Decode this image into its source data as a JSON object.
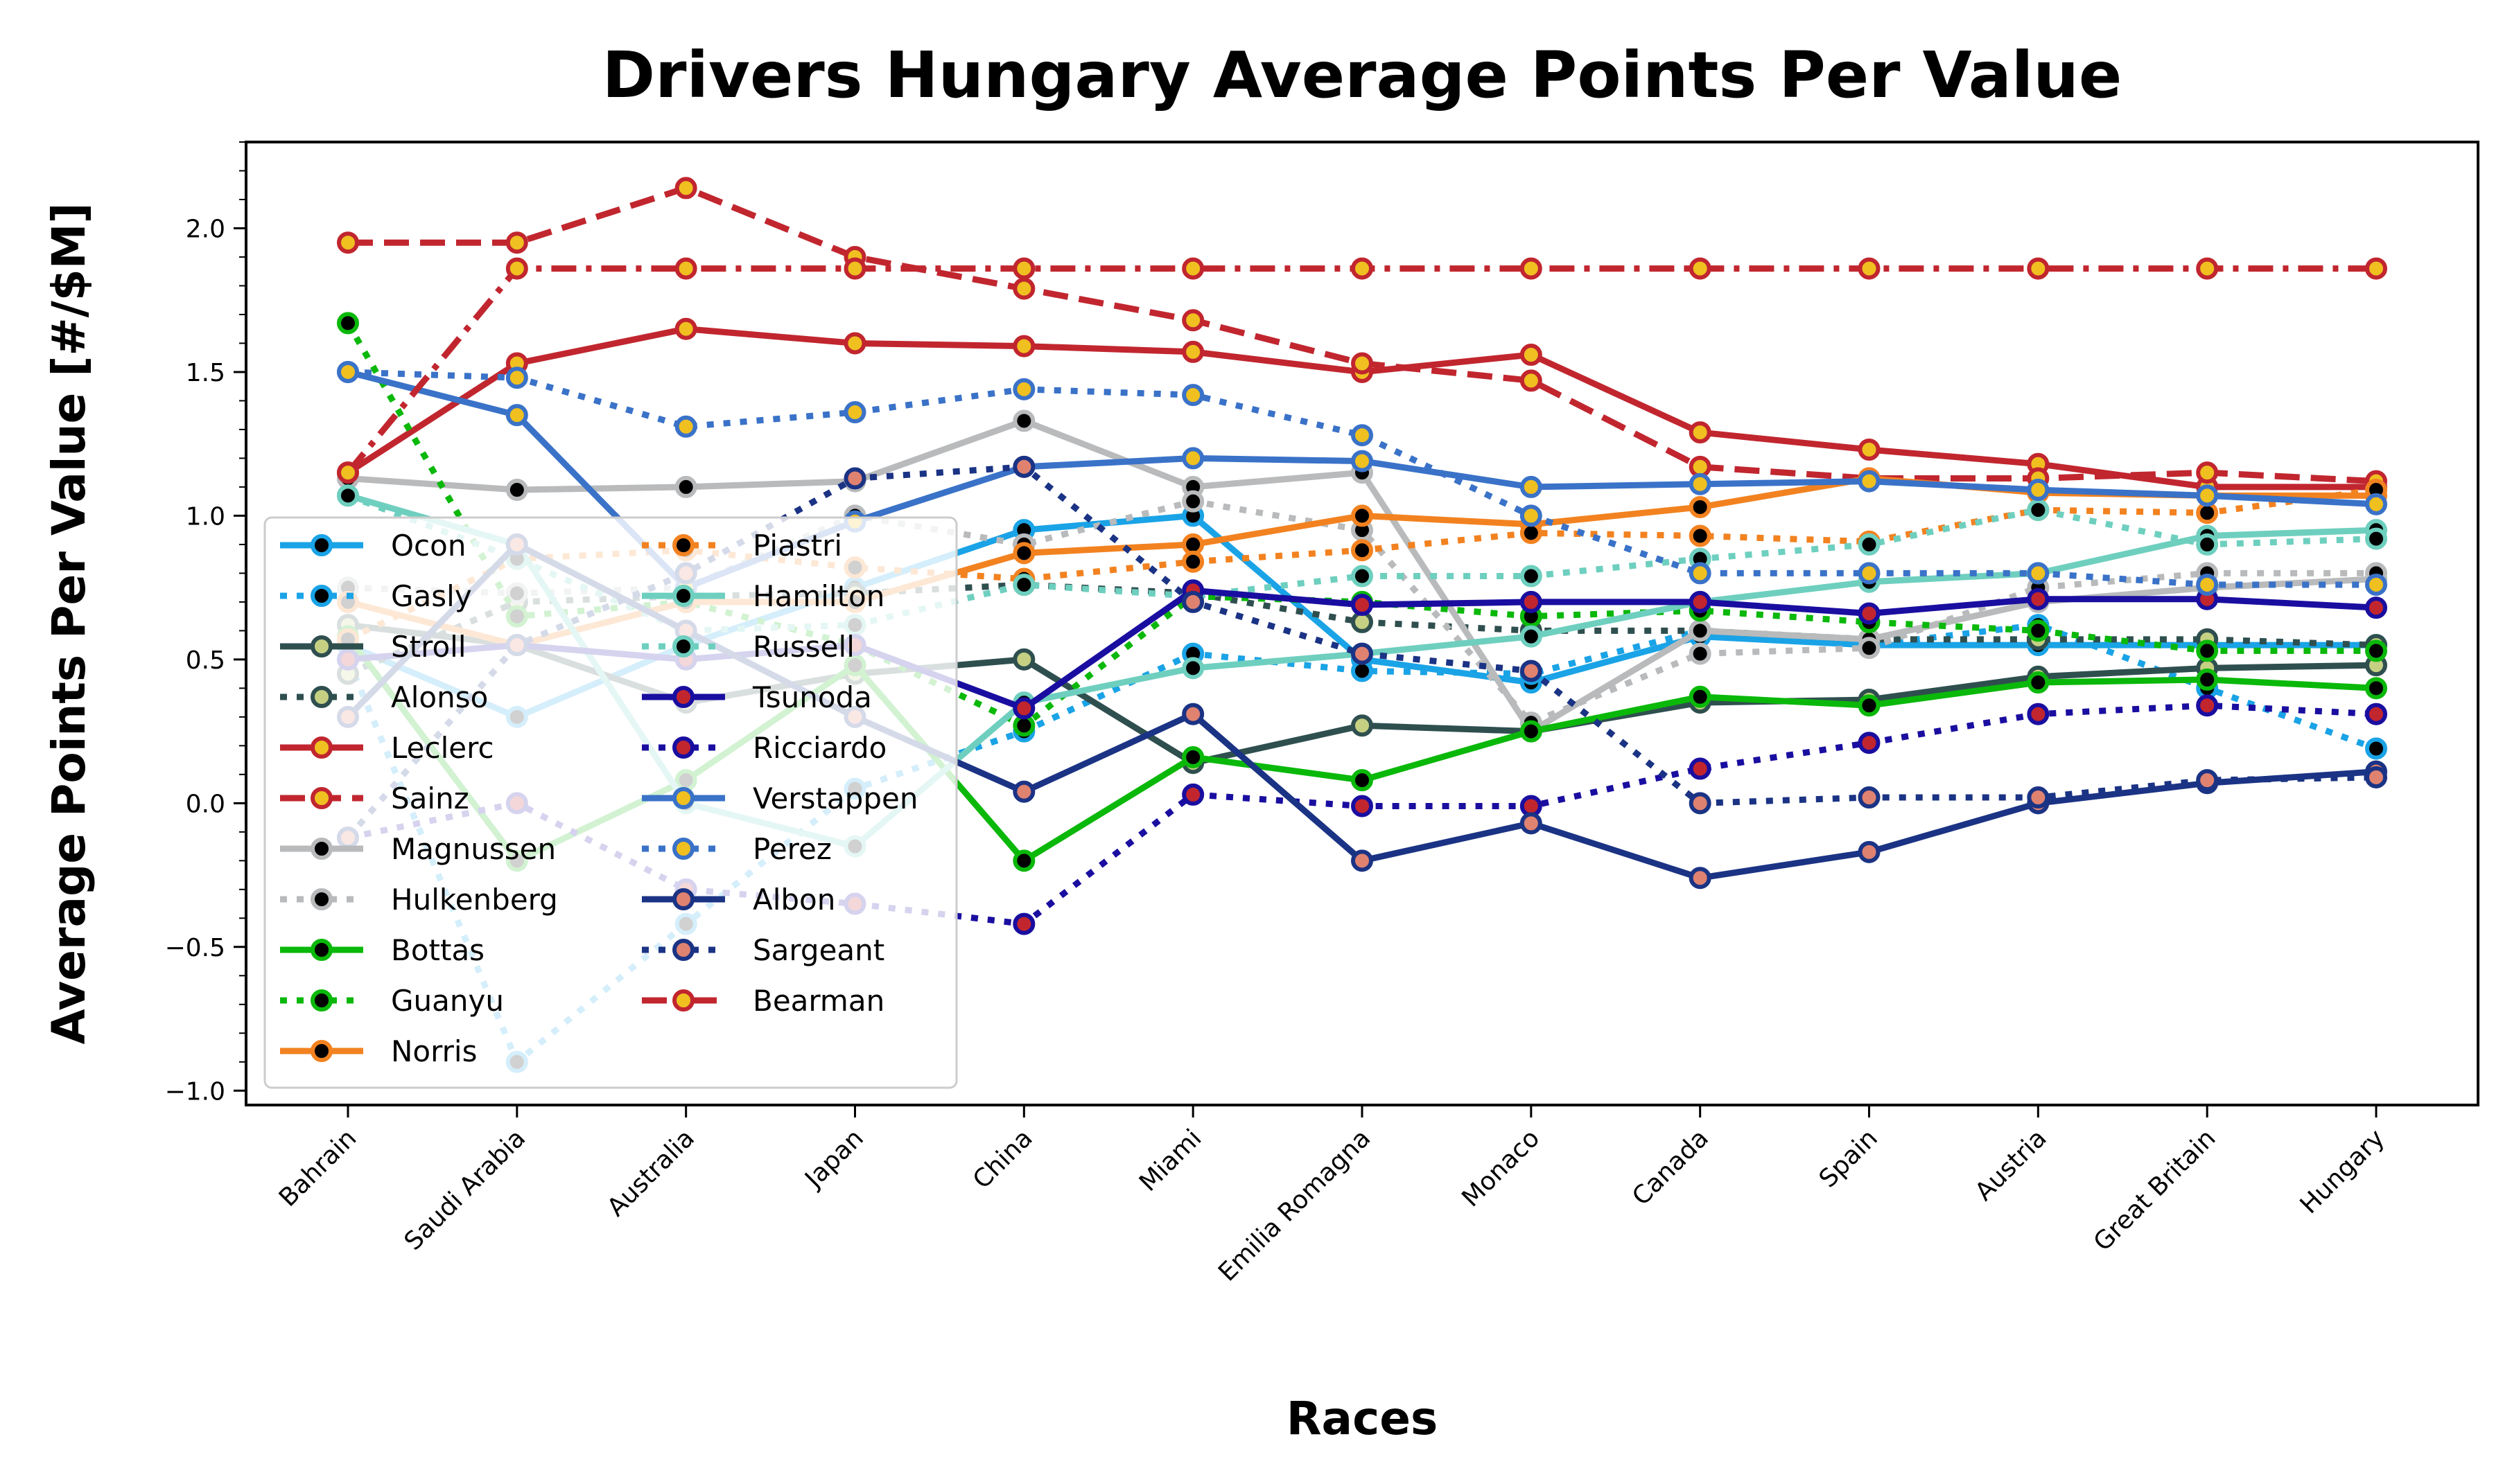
{
  "chart_data": {
    "type": "line",
    "title": "Drivers Hungary Average Points Per Value",
    "xlabel": "Races",
    "ylabel": "Average Points Per Value [#/$M]",
    "ylim": [
      -1.05,
      2.3
    ],
    "yticks": [
      -1.0,
      -0.5,
      0.0,
      0.5,
      1.0,
      1.5,
      2.0
    ],
    "ytick_labels": [
      "−1.0",
      "−0.5",
      "0.0",
      "0.5",
      "1.0",
      "1.5",
      "2.0"
    ],
    "grid": false,
    "legend_position": "lower-left",
    "categories": [
      "Bahrain",
      "Saudi Arabia",
      "Australia",
      "Japan",
      "China",
      "Miami",
      "Emilia Romagna",
      "Monaco",
      "Canada",
      "Spain",
      "Austria",
      "Great Britain",
      "Hungary"
    ],
    "series": [
      {
        "name": "Ocon",
        "color": "#1aa3e6",
        "marker": "#000000",
        "dash": "solid",
        "values": [
          0.55,
          0.3,
          0.55,
          0.75,
          0.95,
          1.0,
          0.5,
          0.42,
          0.58,
          0.55,
          0.55,
          0.55,
          0.55
        ]
      },
      {
        "name": "Gasly",
        "color": "#1aa3e6",
        "marker": "#000000",
        "dash": "dotted",
        "values": [
          0.5,
          -0.9,
          -0.42,
          0.05,
          0.25,
          0.52,
          0.46,
          0.45,
          0.6,
          0.55,
          0.62,
          0.4,
          0.19
        ]
      },
      {
        "name": "Stroll",
        "color": "#2f4f4f",
        "marker": "#c6d083",
        "dash": "solid",
        "values": [
          0.62,
          0.55,
          0.35,
          0.45,
          0.5,
          0.14,
          0.27,
          0.25,
          0.35,
          0.36,
          0.44,
          0.47,
          0.48
        ]
      },
      {
        "name": "Alonso",
        "color": "#2f4f4f",
        "marker": "#c6d083",
        "dash": "dotted",
        "values": [
          0.45,
          0.7,
          0.72,
          0.73,
          0.76,
          0.73,
          0.63,
          0.6,
          0.6,
          0.57,
          0.57,
          0.57,
          0.55
        ]
      },
      {
        "name": "Leclerc",
        "color": "#c1262f",
        "marker": "#f0c020",
        "dash": "solid",
        "values": [
          1.15,
          1.53,
          1.65,
          1.6,
          1.59,
          1.57,
          1.5,
          1.56,
          1.29,
          1.23,
          1.18,
          1.1,
          1.1
        ]
      },
      {
        "name": "Sainz",
        "color": "#c1262f",
        "marker": "#f0c020",
        "dash": "dashed",
        "values": [
          1.95,
          1.95,
          2.14,
          1.9,
          1.79,
          1.68,
          1.53,
          1.47,
          1.17,
          1.13,
          1.13,
          1.15,
          1.12
        ]
      },
      {
        "name": "Magnussen",
        "color": "#b8babb",
        "marker": "#000000",
        "dash": "solid",
        "values": [
          1.13,
          1.09,
          1.1,
          1.12,
          1.33,
          1.1,
          1.15,
          0.25,
          0.6,
          0.57,
          0.7,
          0.75,
          0.78
        ]
      },
      {
        "name": "Hulkenberg",
        "color": "#b8babb",
        "marker": "#000000",
        "dash": "dotted",
        "values": [
          0.75,
          0.73,
          0.75,
          1.0,
          0.9,
          1.05,
          0.95,
          0.28,
          0.52,
          0.54,
          0.75,
          0.8,
          0.8
        ]
      },
      {
        "name": "Bottas",
        "color": "#0ab80a",
        "marker": "#000000",
        "dash": "solid",
        "values": [
          0.58,
          -0.2,
          0.08,
          0.48,
          -0.2,
          0.16,
          0.08,
          0.25,
          0.37,
          0.34,
          0.42,
          0.43,
          0.4
        ]
      },
      {
        "name": "Guanyu",
        "color": "#0ab80a",
        "marker": "#000000",
        "dash": "dotted",
        "values": [
          1.67,
          0.65,
          0.7,
          0.55,
          0.27,
          0.72,
          0.7,
          0.65,
          0.67,
          0.63,
          0.6,
          0.53,
          0.53
        ]
      },
      {
        "name": "Norris",
        "color": "#f28220",
        "marker": "#000000",
        "dash": "solid",
        "values": [
          0.7,
          0.55,
          0.7,
          0.7,
          0.87,
          0.9,
          1.0,
          0.97,
          1.03,
          1.13,
          1.08,
          1.07,
          1.07
        ]
      },
      {
        "name": "Piastri",
        "color": "#f28220",
        "marker": "#000000",
        "dash": "dotted",
        "values": [
          0.57,
          0.85,
          0.88,
          0.82,
          0.78,
          0.84,
          0.88,
          0.94,
          0.93,
          0.91,
          1.02,
          1.01,
          1.09
        ]
      },
      {
        "name": "Hamilton",
        "color": "#6ecfbf",
        "marker": "#000000",
        "dash": "solid",
        "values": [
          1.07,
          0.9,
          0.0,
          -0.15,
          0.35,
          0.47,
          0.52,
          0.58,
          0.7,
          0.77,
          0.8,
          0.93,
          0.95
        ]
      },
      {
        "name": "Russell",
        "color": "#6ecfbf",
        "marker": "#000000",
        "dash": "dotted",
        "values": [
          1.07,
          0.85,
          0.6,
          0.62,
          0.76,
          0.72,
          0.79,
          0.79,
          0.85,
          0.9,
          1.02,
          0.9,
          0.92
        ]
      },
      {
        "name": "Tsunoda",
        "color": "#1a0ea0",
        "marker": "#c1262f",
        "dash": "solid",
        "values": [
          0.5,
          0.55,
          0.5,
          0.55,
          0.33,
          0.74,
          0.69,
          0.7,
          0.7,
          0.66,
          0.71,
          0.71,
          0.68
        ]
      },
      {
        "name": "Ricciardo",
        "color": "#1a0ea0",
        "marker": "#c1262f",
        "dash": "dotted",
        "values": [
          -0.12,
          0.0,
          -0.3,
          -0.35,
          -0.42,
          0.03,
          -0.01,
          -0.01,
          0.12,
          0.21,
          0.31,
          0.34,
          0.31
        ]
      },
      {
        "name": "Verstappen",
        "color": "#3a72c8",
        "marker": "#f0c020",
        "dash": "solid",
        "values": [
          1.5,
          1.35,
          0.75,
          0.98,
          1.17,
          1.2,
          1.19,
          1.1,
          1.11,
          1.12,
          1.09,
          1.07,
          1.04
        ]
      },
      {
        "name": "Perez",
        "color": "#3a72c8",
        "marker": "#f0c020",
        "dash": "dotted",
        "values": [
          1.5,
          1.48,
          1.31,
          1.36,
          1.44,
          1.42,
          1.28,
          1.0,
          0.8,
          0.8,
          0.8,
          0.76,
          0.76
        ]
      },
      {
        "name": "Albon",
        "color": "#1b3384",
        "marker": "#e08270",
        "dash": "solid",
        "values": [
          0.3,
          0.9,
          0.6,
          0.3,
          0.04,
          0.31,
          -0.2,
          -0.07,
          -0.26,
          -0.17,
          0.0,
          0.07,
          0.11
        ]
      },
      {
        "name": "Sargeant",
        "color": "#1b3384",
        "marker": "#e08270",
        "dash": "dotted",
        "values": [
          -0.12,
          0.55,
          0.8,
          1.13,
          1.17,
          0.7,
          0.52,
          0.46,
          0.0,
          0.02,
          0.02,
          0.08,
          0.09
        ]
      },
      {
        "name": "Bearman",
        "color": "#c1262f",
        "marker": "#f0c020",
        "dash": "dashdot",
        "values": [
          1.15,
          1.86,
          1.86,
          1.86,
          1.86,
          1.86,
          1.86,
          1.86,
          1.86,
          1.86,
          1.86,
          1.86,
          1.86
        ]
      }
    ]
  }
}
